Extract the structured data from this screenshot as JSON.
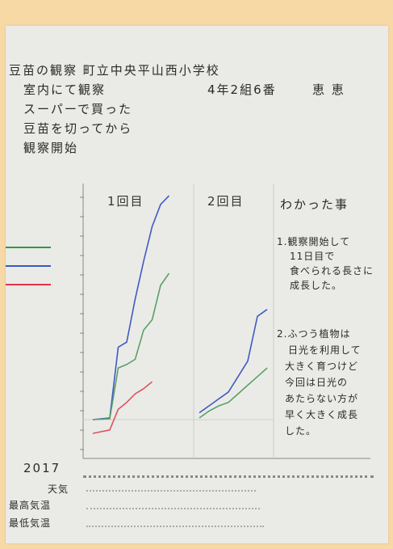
{
  "header": {
    "line1": "豆苗の観察 町立中央平山西小学校",
    "line2": "室内にて観察",
    "class_label": "4年2組6番",
    "name": "恵 恵",
    "line3": "スーパーで買った",
    "line4": "豆苗を切ってから",
    "line5": "観察開始"
  },
  "notes": {
    "title": "わかった事",
    "items": [
      [
        "1.観察開始して",
        "11日目で",
        "食べられる長さに",
        "成長した。"
      ],
      [
        "2.ふつう植物は",
        "日光を利用して",
        "大きく育つけど",
        "今回は日光の",
        "あたらない方が",
        "早く大きく成長",
        "した。"
      ]
    ]
  },
  "footer": {
    "year": "2017",
    "row_weather": "天気",
    "row_max_temp": "最高気温",
    "row_min_temp": "最低気温"
  },
  "colors": {
    "blue": "#4059c4",
    "green": "#5aa06a",
    "red": "#e05060",
    "legend_green": "#2e9a4a",
    "legend_blue": "#3a57c8",
    "legend_red": "#e8304a",
    "axis": "#888888"
  },
  "chart_data": {
    "type": "line",
    "panels": [
      {
        "title": "1回目",
        "x": [
          0,
          1,
          2,
          3,
          4,
          5,
          6,
          7,
          8,
          9,
          10,
          11
        ],
        "series": [
          {
            "color": "blue",
            "values": [
              0,
              0.5,
              1,
              42,
              45,
              70,
              92,
              112,
              125,
              130,
              null,
              null
            ]
          },
          {
            "color": "green",
            "values": [
              0,
              0.3,
              0.5,
              30,
              32,
              35,
              52,
              58,
              78,
              85,
              null,
              null
            ]
          },
          {
            "color": "red",
            "values": [
              -8,
              -7,
              -6,
              6,
              10,
              15,
              18,
              22,
              null,
              null,
              null,
              null
            ]
          }
        ]
      },
      {
        "title": "2回目",
        "x": [
          0,
          1,
          2,
          3,
          4,
          5,
          6,
          7
        ],
        "series": [
          {
            "color": "blue",
            "values": [
              4,
              8,
              12,
              16,
              25,
              34,
              60,
              64
            ]
          },
          {
            "color": "green",
            "values": [
              1,
              5,
              8,
              10,
              15,
              20,
              25,
              30
            ]
          }
        ]
      }
    ]
  }
}
